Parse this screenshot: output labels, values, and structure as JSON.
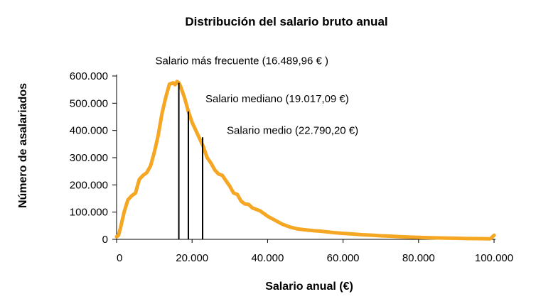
{
  "chart_data": {
    "type": "line",
    "title": "Distribución del salario bruto anual",
    "xlabel": "Salario anual (€)",
    "ylabel": "Número de asalariados",
    "xlim": [
      0,
      100000
    ],
    "ylim": [
      0,
      600000
    ],
    "x_ticks": [
      0,
      20000,
      40000,
      60000,
      80000,
      100000
    ],
    "x_tick_labels": [
      "0",
      "20.000",
      "40.000",
      "60.000",
      "80.000",
      "100.000"
    ],
    "y_ticks": [
      0,
      100000,
      200000,
      300000,
      400000,
      500000,
      600000
    ],
    "y_tick_labels": [
      "0",
      "100.000",
      "200.000",
      "300.000",
      "400.000",
      "500.000",
      "600.000"
    ],
    "grid": false,
    "legend": "none",
    "series_color": "#f5a623",
    "series": [
      {
        "x": [
          0,
          500,
          1000,
          2000,
          3000,
          4000,
          5000,
          6000,
          7000,
          8000,
          9000,
          10000,
          11000,
          12000,
          13000,
          14000,
          15000,
          15500,
          16000,
          16500,
          17000,
          18000,
          19000,
          20000,
          21000,
          22000,
          23000,
          24000,
          25000,
          26000,
          27000,
          28000,
          29000,
          30000,
          31000,
          32000,
          33000,
          34000,
          35000,
          36000,
          38000,
          40000,
          42000,
          44000,
          46000,
          48000,
          50000,
          52000,
          54000,
          56000,
          58000,
          60000,
          62000,
          65000,
          68000,
          70000,
          72000,
          75000,
          78000,
          80000,
          83000,
          86000,
          90000,
          93000,
          96000,
          99000,
          100000
        ],
        "y": [
          10000,
          15000,
          40000,
          100000,
          145000,
          160000,
          170000,
          220000,
          235000,
          245000,
          270000,
          320000,
          380000,
          460000,
          520000,
          570000,
          575000,
          568000,
          580000,
          575000,
          560000,
          520000,
          470000,
          430000,
          400000,
          370000,
          340000,
          300000,
          280000,
          255000,
          240000,
          235000,
          215000,
          195000,
          170000,
          165000,
          140000,
          130000,
          128000,
          115000,
          105000,
          85000,
          70000,
          55000,
          45000,
          38000,
          35000,
          32000,
          30000,
          27000,
          24000,
          22000,
          20000,
          17000,
          15000,
          13000,
          12000,
          10000,
          8000,
          7000,
          6000,
          5000,
          4000,
          3000,
          2500,
          2000,
          15000
        ]
      }
    ],
    "annotations": [
      {
        "text": "Salario más frecuente (16.489,96 € )",
        "x": 16489.96,
        "y_top": 575000
      },
      {
        "text": "Salario mediano (19.017,09 €)",
        "x": 19017.09,
        "y_top": 470000
      },
      {
        "text": "Salario medio (22.790,20 €)",
        "x": 22790.2,
        "y_top": 375000
      }
    ]
  }
}
